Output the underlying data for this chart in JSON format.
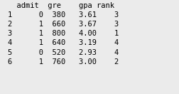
{
  "header": "  admit  gre    gpa rank",
  "rows": [
    "1      0  380   3.61    3",
    "2      1  660   3.67    3",
    "3      1  800   4.00    1",
    "4      1  640   3.19    4",
    "5      0  520   2.93    4",
    "6      1  760   3.00    2"
  ],
  "bg_color": "#ebebeb",
  "font_color": "#000000",
  "font_size": 7.5,
  "font_family": "monospace",
  "fig_width": 2.53,
  "fig_height": 1.32,
  "dpi": 100
}
